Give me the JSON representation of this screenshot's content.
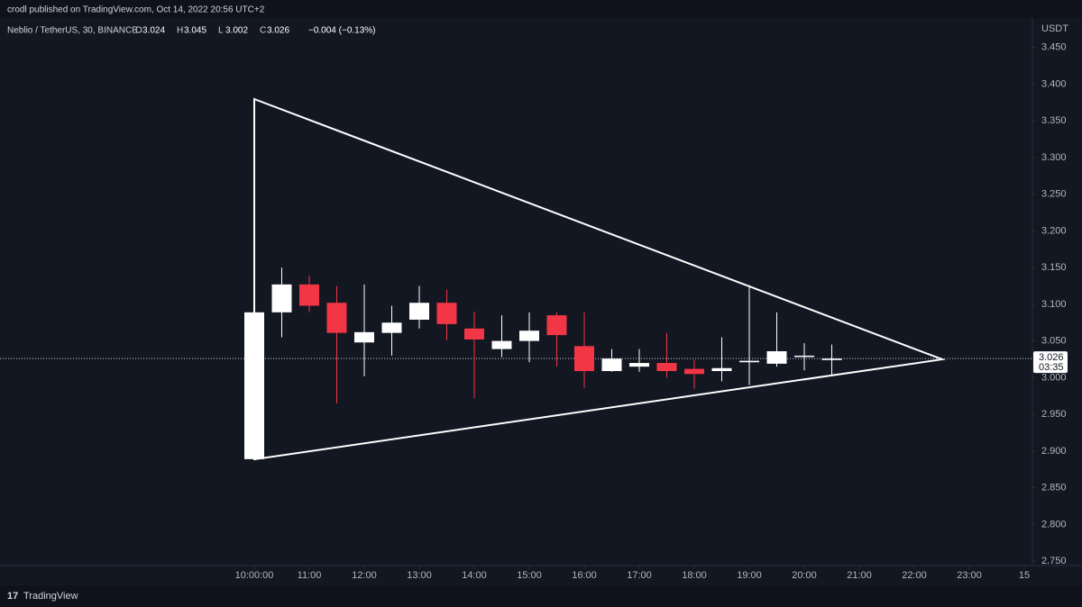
{
  "header": {
    "publisher": "crodl published on TradingView.com, Oct 14, 2022 20:56 UTC+2",
    "brand": "TradingView"
  },
  "chart_data": {
    "type": "candlestick",
    "symbol": "Neblio / TetherUS, 30, BINANCE",
    "ohlc_legend": [
      {
        "key": "O",
        "text": "3.024"
      },
      {
        "key": "H",
        "text": "3.045"
      },
      {
        "key": "L",
        "text": "3.002"
      },
      {
        "key": "C",
        "text": "3.026"
      }
    ],
    "change": "−0.004 (−0.13%)",
    "y_unit": "USDT",
    "x": [
      "10:00",
      "10:30",
      "11:00",
      "11:30",
      "12:00",
      "12:30",
      "13:00",
      "13:30",
      "14:00",
      "14:30",
      "15:00",
      "15:30",
      "16:00",
      "16:30",
      "17:00",
      "17:30",
      "18:00",
      "18:30",
      "19:00",
      "19:30",
      "20:00",
      "20:30"
    ],
    "open": [
      2.889,
      3.089,
      3.127,
      3.102,
      3.048,
      3.061,
      3.079,
      3.102,
      3.067,
      3.039,
      3.05,
      3.085,
      3.043,
      3.009,
      3.015,
      3.02,
      3.012,
      3.009,
      3.021,
      3.019,
      3.03,
      3.024
    ],
    "high": [
      3.09,
      3.15,
      3.139,
      3.125,
      3.127,
      3.098,
      3.125,
      3.12,
      3.09,
      3.085,
      3.089,
      3.089,
      3.089,
      3.039,
      3.039,
      3.061,
      3.024,
      3.055,
      3.126,
      3.089,
      3.047,
      3.045
    ],
    "low": [
      2.888,
      3.055,
      3.089,
      2.965,
      3.002,
      3.03,
      3.067,
      3.051,
      2.972,
      3.028,
      3.021,
      3.015,
      2.986,
      3.008,
      3.008,
      3.0,
      2.985,
      2.995,
      2.99,
      3.015,
      3.01,
      3.002
    ],
    "close": [
      3.089,
      3.127,
      3.098,
      3.061,
      3.062,
      3.075,
      3.102,
      3.073,
      3.052,
      3.05,
      3.064,
      3.058,
      3.009,
      3.026,
      3.02,
      3.009,
      3.005,
      3.013,
      3.023,
      3.036,
      3.03,
      3.026
    ],
    "up_color": "#ffffff",
    "down_color": "#f23645",
    "ylim": [
      2.744,
      3.49
    ],
    "yticks": [
      {
        "value": 2.75,
        "label": "2.750"
      },
      {
        "value": 2.8,
        "label": "2.800"
      },
      {
        "value": 2.85,
        "label": "2.850"
      },
      {
        "value": 2.9,
        "label": "2.900"
      },
      {
        "value": 2.95,
        "label": "2.950"
      },
      {
        "value": 3.0,
        "label": "3.000"
      },
      {
        "value": 3.05,
        "label": "3.050"
      },
      {
        "value": 3.1,
        "label": "3.100"
      },
      {
        "value": 3.15,
        "label": "3.150"
      },
      {
        "value": 3.2,
        "label": "3.200"
      },
      {
        "value": 3.25,
        "label": "3.250"
      },
      {
        "value": 3.3,
        "label": "3.300"
      },
      {
        "value": 3.35,
        "label": "3.350"
      },
      {
        "value": 3.4,
        "label": "3.400"
      },
      {
        "value": 3.45,
        "label": "3.450"
      }
    ],
    "xticks": [
      "10:00:00",
      "11:00",
      "12:00",
      "13:00",
      "14:00",
      "15:00",
      "16:00",
      "17:00",
      "18:00",
      "19:00",
      "20:00",
      "21:00",
      "22:00",
      "23:00",
      "15"
    ],
    "last_price": 3.026,
    "countdown": "03:35"
  }
}
